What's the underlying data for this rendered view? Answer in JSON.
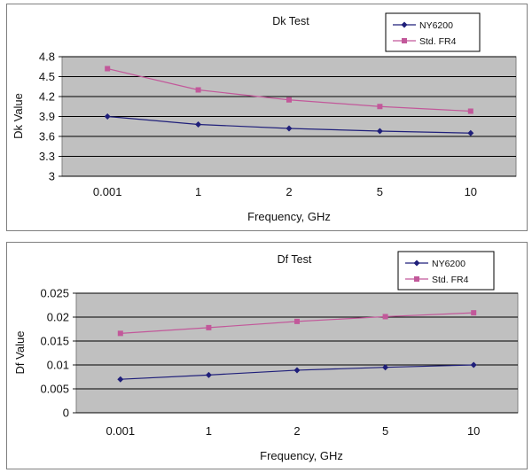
{
  "chart_data": [
    {
      "type": "line",
      "title": "Dk Test",
      "xlabel": "Frequency, GHz",
      "ylabel": "Dk Value",
      "categories": [
        "0.001",
        "1",
        "2",
        "5",
        "10"
      ],
      "ylim": [
        3,
        4.8
      ],
      "yticks": [
        "4.8",
        "4.5",
        "4.2",
        "3.9",
        "3.6",
        "3.3",
        "3"
      ],
      "grid": true,
      "legend": "top-right",
      "series": [
        {
          "name": "NY6200",
          "color": "#1f1f7a",
          "marker": "diamond",
          "values": [
            3.9,
            3.78,
            3.72,
            3.68,
            3.65
          ]
        },
        {
          "name": "Std. FR4",
          "color": "#c2589a",
          "marker": "square",
          "values": [
            4.62,
            4.3,
            4.15,
            4.05,
            3.98
          ]
        }
      ]
    },
    {
      "type": "line",
      "title": "Df Test",
      "xlabel": "Frequency, GHz",
      "ylabel": "Df Value",
      "categories": [
        "0.001",
        "1",
        "2",
        "5",
        "10"
      ],
      "ylim": [
        0,
        0.025
      ],
      "yticks": [
        "0.025",
        "0.02",
        "0.015",
        "0.01",
        "0.005",
        "0"
      ],
      "grid": true,
      "legend": "top-right",
      "series": [
        {
          "name": "NY6200",
          "color": "#1f1f7a",
          "marker": "diamond",
          "values": [
            0.007,
            0.0079,
            0.0089,
            0.0095,
            0.01
          ]
        },
        {
          "name": "Std. FR4",
          "color": "#c2589a",
          "marker": "square",
          "values": [
            0.0166,
            0.0178,
            0.0191,
            0.0201,
            0.0209
          ]
        }
      ]
    }
  ]
}
